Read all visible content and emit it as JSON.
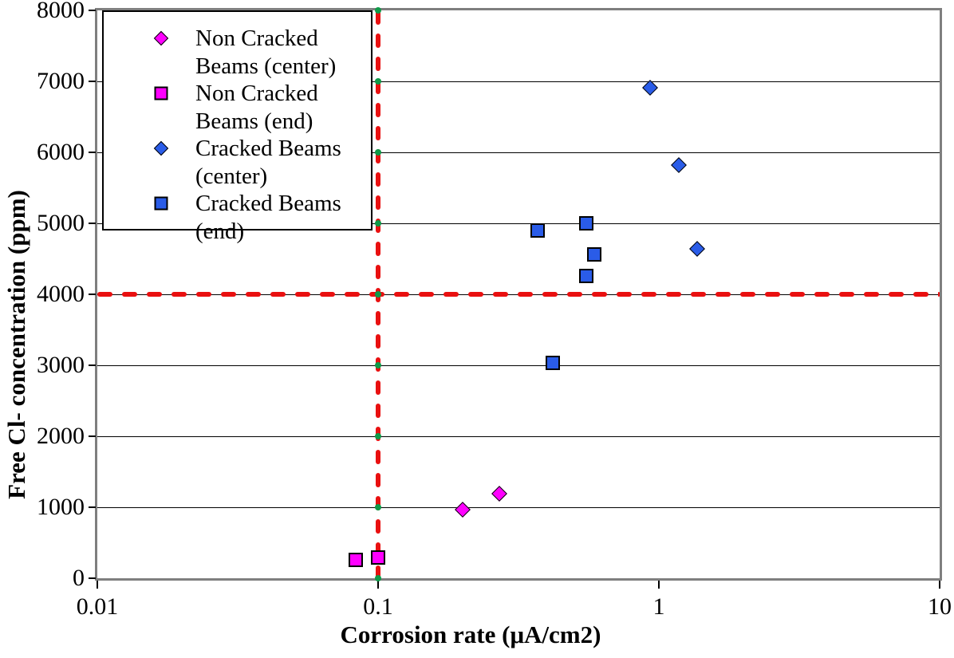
{
  "chart_data": {
    "type": "scatter",
    "title": "",
    "xlabel": "Corrosion rate (μA/cm2)",
    "ylabel": "Free Cl- concentration (ppm)",
    "x_scale": "log",
    "xlim": [
      0.01,
      10
    ],
    "ylim": [
      0,
      8000
    ],
    "x_tick_values": [
      0.01,
      0.1,
      1,
      10
    ],
    "x_tick_labels": [
      "0.01",
      "0.1",
      "1",
      "10"
    ],
    "y_tick_values": [
      0,
      1000,
      2000,
      3000,
      4000,
      5000,
      6000,
      7000,
      8000
    ],
    "y_tick_labels": [
      "0",
      "1000",
      "2000",
      "3000",
      "4000",
      "5000",
      "6000",
      "7000",
      "8000"
    ],
    "grid": "horizontal-only",
    "legend_position": "top-left",
    "series": [
      {
        "name": "Non Cracked Beams (center)",
        "legend_lines": [
          "Non Cracked",
          "Beams (center)"
        ],
        "marker": "diamond",
        "color": "#ff00ff",
        "points": [
          {
            "x": 0.2,
            "y": 970
          },
          {
            "x": 0.27,
            "y": 1190
          }
        ]
      },
      {
        "name": "Non Cracked Beams (end)",
        "legend_lines": [
          "Non Cracked",
          "Beams (end)"
        ],
        "marker": "square",
        "color": "#ff00ff",
        "points": [
          {
            "x": 0.083,
            "y": 260
          },
          {
            "x": 0.1,
            "y": 295
          }
        ]
      },
      {
        "name": "Cracked Beams (center)",
        "legend_lines": [
          "Cracked Beams",
          "(center)"
        ],
        "marker": "diamond",
        "color": "#2a5ce8",
        "points": [
          {
            "x": 0.93,
            "y": 6910
          },
          {
            "x": 1.18,
            "y": 5820
          },
          {
            "x": 1.37,
            "y": 4640
          }
        ]
      },
      {
        "name": "Cracked Beams (end)",
        "legend_lines": [
          "Cracked Beams",
          "(end)"
        ],
        "marker": "square",
        "color": "#2a5ce8",
        "points": [
          {
            "x": 0.37,
            "y": 4900
          },
          {
            "x": 0.55,
            "y": 5000
          },
          {
            "x": 0.59,
            "y": 4560
          },
          {
            "x": 0.55,
            "y": 4260
          },
          {
            "x": 0.42,
            "y": 3030
          }
        ]
      }
    ],
    "reference_lines": [
      {
        "orientation": "horizontal",
        "value": 4000,
        "color": "#e91010",
        "style": "thick-dashed"
      },
      {
        "orientation": "vertical",
        "value": 0.1,
        "color": "#e91010",
        "style": "thick-dashed",
        "node_color": "#0f9a48",
        "nodes_at_gridlines": true
      }
    ],
    "colors": {
      "grid": "#000000",
      "plot_border": "#7f7f7f",
      "background": "#ffffff"
    }
  }
}
